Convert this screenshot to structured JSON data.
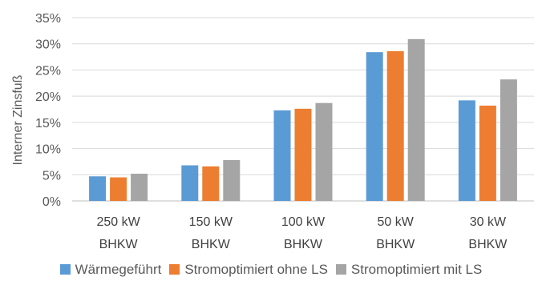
{
  "chart_data": {
    "type": "bar",
    "title": "",
    "ylabel": "Interner Zinsfuß",
    "xlabel": "",
    "ylim": [
      0,
      35
    ],
    "yticks": [
      "0%",
      "5%",
      "10%",
      "15%",
      "20%",
      "25%",
      "30%",
      "35%"
    ],
    "ytick_values": [
      0,
      5,
      10,
      15,
      20,
      25,
      30,
      35
    ],
    "grid": true,
    "legend_position": "bottom",
    "categories": [
      [
        "250 kW",
        "BHKW"
      ],
      [
        "150 kW",
        "BHKW"
      ],
      [
        "100 kW",
        "BHKW"
      ],
      [
        "50 kW",
        "BHKW"
      ],
      [
        "30 kW",
        "BHKW"
      ]
    ],
    "series": [
      {
        "name": "Wärmegeführt",
        "color": "#5b9bd5",
        "values": [
          4.7,
          6.8,
          17.3,
          28.4,
          19.2
        ]
      },
      {
        "name": "Stromoptimiert ohne LS",
        "color": "#ed7d31",
        "values": [
          4.5,
          6.6,
          17.6,
          28.6,
          18.2
        ]
      },
      {
        "name": "Stromoptimiert mit LS",
        "color": "#a5a5a5",
        "values": [
          5.2,
          7.8,
          18.7,
          30.9,
          23.2
        ]
      }
    ]
  }
}
